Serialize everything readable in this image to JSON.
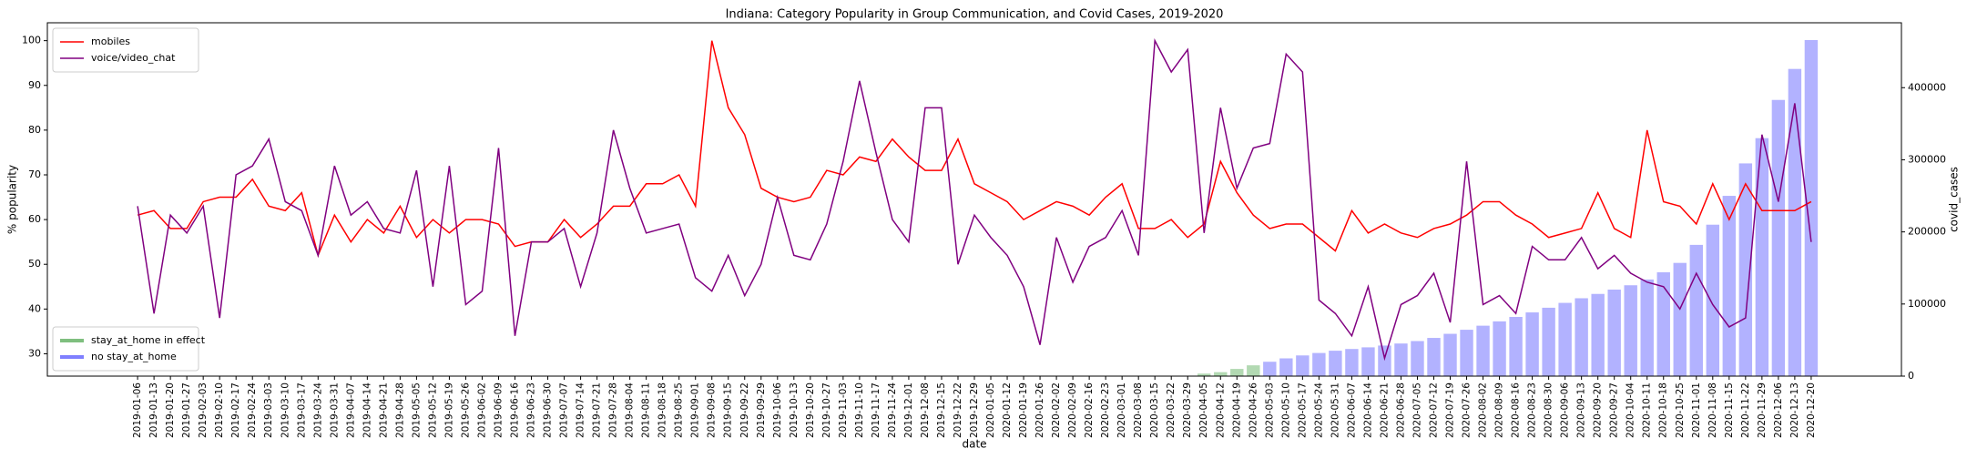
{
  "chart_data": {
    "type": "combo",
    "title": "Indiana: Category Popularity in Group Communication, and Covid Cases, 2019-2020",
    "xlabel": "date",
    "ylabel": "% popularity",
    "y2label": "covid_cases",
    "categories": [
      "2019-01-06",
      "2019-01-13",
      "2019-01-20",
      "2019-01-27",
      "2019-02-03",
      "2019-02-10",
      "2019-02-17",
      "2019-02-24",
      "2019-03-03",
      "2019-03-10",
      "2019-03-17",
      "2019-03-24",
      "2019-03-31",
      "2019-04-07",
      "2019-04-14",
      "2019-04-21",
      "2019-04-28",
      "2019-05-05",
      "2019-05-12",
      "2019-05-19",
      "2019-05-26",
      "2019-06-02",
      "2019-06-09",
      "2019-06-16",
      "2019-06-23",
      "2019-06-30",
      "2019-07-07",
      "2019-07-14",
      "2019-07-21",
      "2019-07-28",
      "2019-08-04",
      "2019-08-11",
      "2019-08-18",
      "2019-08-25",
      "2019-09-01",
      "2019-09-08",
      "2019-09-15",
      "2019-09-22",
      "2019-09-29",
      "2019-10-06",
      "2019-10-13",
      "2019-10-20",
      "2019-10-27",
      "2019-11-03",
      "2019-11-10",
      "2019-11-17",
      "2019-11-24",
      "2019-12-01",
      "2019-12-08",
      "2019-12-15",
      "2019-12-22",
      "2019-12-29",
      "2020-01-05",
      "2020-01-12",
      "2020-01-19",
      "2020-01-26",
      "2020-02-02",
      "2020-02-09",
      "2020-02-16",
      "2020-02-23",
      "2020-03-01",
      "2020-03-08",
      "2020-03-15",
      "2020-03-22",
      "2020-03-29",
      "2020-04-05",
      "2020-04-12",
      "2020-04-19",
      "2020-04-26",
      "2020-05-03",
      "2020-05-10",
      "2020-05-17",
      "2020-05-24",
      "2020-05-31",
      "2020-06-07",
      "2020-06-14",
      "2020-06-21",
      "2020-06-28",
      "2020-07-05",
      "2020-07-12",
      "2020-07-19",
      "2020-07-26",
      "2020-08-02",
      "2020-08-09",
      "2020-08-16",
      "2020-08-23",
      "2020-08-30",
      "2020-09-06",
      "2020-09-13",
      "2020-09-20",
      "2020-09-27",
      "2020-10-04",
      "2020-10-11",
      "2020-10-18",
      "2020-10-25",
      "2020-11-01",
      "2020-11-08",
      "2020-11-15",
      "2020-11-22",
      "2020-11-29",
      "2020-12-06",
      "2020-12-13",
      "2020-12-20"
    ],
    "series": [
      {
        "name": "mobiles",
        "type": "line",
        "color": "#ff0000",
        "values": [
          61,
          62,
          58,
          58,
          64,
          65,
          65,
          69,
          63,
          62,
          66,
          52,
          61,
          55,
          60,
          57,
          63,
          56,
          60,
          57,
          60,
          60,
          59,
          54,
          55,
          55,
          60,
          56,
          59,
          63,
          63,
          68,
          68,
          70,
          63,
          100,
          85,
          79,
          67,
          65,
          64,
          65,
          71,
          70,
          74,
          73,
          78,
          74,
          71,
          71,
          78,
          68,
          66,
          64,
          60,
          62,
          64,
          63,
          61,
          65,
          68,
          58,
          58,
          60,
          56,
          59,
          73,
          66,
          61,
          58,
          59,
          59,
          56,
          53,
          62,
          57,
          59,
          57,
          56,
          58,
          59,
          61,
          64,
          64,
          61,
          59,
          56,
          57,
          58,
          66,
          58,
          56,
          80,
          64,
          63,
          59,
          68,
          60,
          68,
          62,
          62,
          62,
          64
        ]
      },
      {
        "name": "voice/video_chat",
        "type": "line",
        "color": "#800080",
        "values": [
          63,
          39,
          61,
          57,
          63,
          38,
          70,
          72,
          78,
          64,
          62,
          52,
          72,
          61,
          64,
          58,
          57,
          71,
          45,
          72,
          41,
          44,
          76,
          34,
          55,
          55,
          58,
          45,
          57,
          80,
          67,
          57,
          58,
          59,
          47,
          44,
          52,
          43,
          50,
          65,
          52,
          51,
          59,
          73,
          91,
          75,
          60,
          55,
          85,
          85,
          50,
          61,
          56,
          52,
          45,
          32,
          56,
          46,
          54,
          56,
          62,
          52,
          100,
          93,
          98,
          57,
          85,
          67,
          76,
          77,
          97,
          93,
          42,
          39,
          34,
          45,
          29,
          41,
          43,
          48,
          37,
          73,
          41,
          43,
          39,
          54,
          51,
          51,
          56,
          49,
          52,
          48,
          46,
          45,
          40,
          48,
          41,
          36,
          38,
          79,
          64,
          86,
          55
        ]
      },
      {
        "name": "stay_at_home in effect",
        "type": "bar",
        "axis": "y2",
        "color": "#008000",
        "values": [
          null,
          null,
          null,
          null,
          null,
          null,
          null,
          null,
          null,
          null,
          null,
          null,
          null,
          null,
          null,
          null,
          null,
          null,
          null,
          null,
          null,
          null,
          null,
          null,
          null,
          null,
          null,
          null,
          null,
          null,
          null,
          null,
          null,
          null,
          null,
          null,
          null,
          null,
          null,
          null,
          null,
          null,
          null,
          null,
          null,
          null,
          null,
          null,
          null,
          null,
          null,
          null,
          null,
          null,
          null,
          null,
          null,
          null,
          null,
          null,
          null,
          null,
          null,
          null,
          null,
          3500,
          5500,
          10000,
          15000,
          null,
          null,
          null,
          null,
          null,
          null,
          null,
          null,
          null,
          null,
          null,
          null,
          null,
          null,
          null,
          null,
          null,
          null,
          null,
          null,
          null,
          null,
          null,
          null,
          null,
          null,
          null,
          null,
          null,
          null,
          null,
          null,
          null,
          null
        ]
      },
      {
        "name": "no stay_at_home",
        "type": "bar",
        "axis": "y2",
        "color": "#0000ff",
        "values": [
          null,
          null,
          null,
          null,
          null,
          null,
          null,
          null,
          null,
          null,
          null,
          null,
          null,
          null,
          null,
          null,
          null,
          null,
          null,
          null,
          null,
          null,
          null,
          null,
          null,
          null,
          null,
          null,
          null,
          null,
          null,
          null,
          null,
          null,
          null,
          null,
          null,
          null,
          null,
          null,
          null,
          null,
          null,
          null,
          null,
          null,
          null,
          null,
          null,
          null,
          null,
          null,
          null,
          null,
          null,
          null,
          null,
          null,
          null,
          null,
          null,
          null,
          null,
          null,
          null,
          null,
          null,
          null,
          null,
          19933,
          24627,
          28705,
          32078,
          35237,
          37623,
          39909,
          42423,
          45228,
          48626,
          52990,
          58673,
          64299,
          69928,
          75965,
          82106,
          88371,
          94830,
          101570,
          108000,
          114000,
          120000,
          126000,
          134000,
          144000,
          157000,
          182000,
          210000,
          250000,
          295000,
          330000,
          383000,
          426000,
          466000
        ]
      }
    ],
    "ylim": [
      25,
      104
    ],
    "yticks": [
      30,
      40,
      50,
      60,
      70,
      80,
      90,
      100
    ],
    "y2lim": [
      0,
      490000
    ],
    "y2ticks": [
      0,
      100000,
      200000,
      300000,
      400000
    ],
    "bar_alpha": 0.3,
    "legend": {
      "line": "upper left",
      "bar": "lower left"
    }
  }
}
